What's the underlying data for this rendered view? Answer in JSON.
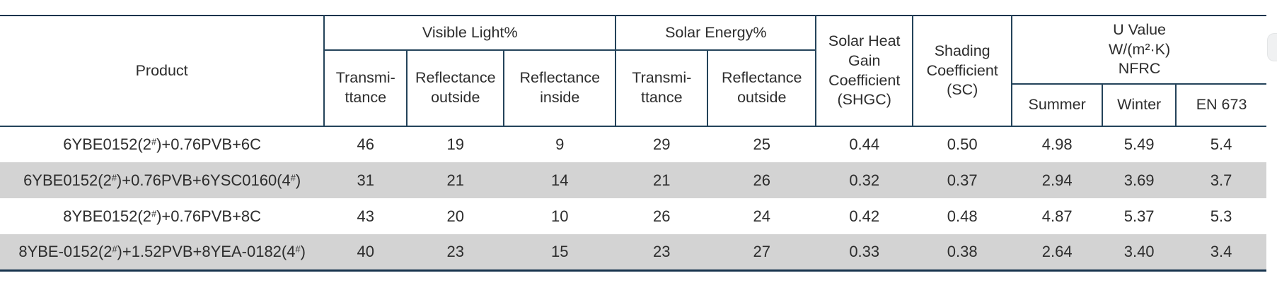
{
  "colors": {
    "grid_line": "#24435a",
    "outer_rule": "#16334d",
    "row_band": "#d3d3d3",
    "text": "#2d2d2d"
  },
  "table": {
    "header": {
      "product": "Product",
      "visible_light": {
        "label": "Visible Light%",
        "cols": [
          "Transmi-\nttance",
          "Reflectance\noutside",
          "Reflectance\ninside"
        ]
      },
      "solar_energy": {
        "label": "Solar Energy%",
        "cols": [
          "Transmi-\nttance",
          "Reflectance\noutside"
        ]
      },
      "shgc": "Solar Heat\nGain\nCoefficient\n(SHGC)",
      "sc": "Shading\nCoefficient\n(SC)",
      "u_value": {
        "label": "U Value\nW/(m²·K)\nNFRC",
        "cols": [
          "Summer",
          "Winter",
          "EN 673"
        ]
      }
    },
    "rows": [
      {
        "product": "6YBE0152(2#)+0.76PVB+6C",
        "values": [
          "46",
          "19",
          "9",
          "29",
          "25",
          "0.44",
          "0.50",
          "4.98",
          "5.49",
          "5.4"
        ]
      },
      {
        "product": "6YBE0152(2#)+0.76PVB+6YSC0160(4#)",
        "values": [
          "31",
          "21",
          "14",
          "21",
          "26",
          "0.32",
          "0.37",
          "2.94",
          "3.69",
          "3.7"
        ]
      },
      {
        "product": "8YBE0152(2#)+0.76PVB+8C",
        "values": [
          "43",
          "20",
          "10",
          "26",
          "24",
          "0.42",
          "0.48",
          "4.87",
          "5.37",
          "5.3"
        ]
      },
      {
        "product": "8YBE-0152(2#)+1.52PVB+8YEA-0182(4#)",
        "values": [
          "40",
          "23",
          "15",
          "23",
          "27",
          "0.33",
          "0.38",
          "2.64",
          "3.40",
          "3.4"
        ]
      }
    ]
  }
}
